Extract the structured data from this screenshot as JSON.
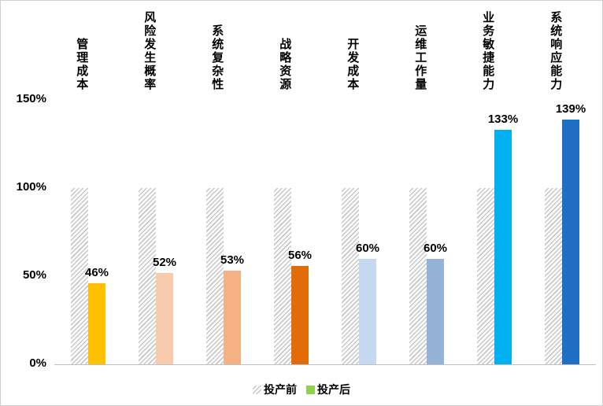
{
  "chart_data": {
    "type": "bar",
    "title": "",
    "categories": [
      "管理成本",
      "风险发生概率",
      "系统复杂性",
      "战略资源",
      "开发成本",
      "运维工作量",
      "业务敏捷能力",
      "系统响应能力"
    ],
    "series": [
      {
        "name": "投产前",
        "values": [
          100,
          100,
          100,
          100,
          100,
          100,
          100,
          100
        ],
        "style": "hatched-gray"
      },
      {
        "name": "投产后",
        "values": [
          46,
          52,
          53,
          56,
          60,
          60,
          133,
          139
        ],
        "colors": [
          "#FFC000",
          "#F8CBAD",
          "#F4B183",
          "#E36C0A",
          "#C5D9F1",
          "#95B3D7",
          "#00B0F0",
          "#1F6FC5"
        ]
      }
    ],
    "value_labels": [
      "46%",
      "52%",
      "53%",
      "56%",
      "60%",
      "60%",
      "133%",
      "139%"
    ],
    "yticks": [
      "0%",
      "50%",
      "100%",
      "150%"
    ],
    "ylim": [
      0,
      150
    ],
    "grid": false,
    "legend_position": "bottom",
    "legend": [
      {
        "label": "投产前",
        "swatch": "hatched-gray"
      },
      {
        "label": "投产后",
        "swatch_color": "#92D050"
      }
    ],
    "colors": {
      "axis_line": "#bfbfbf",
      "hatch_line": "#c6c6c6",
      "text": "#000000"
    }
  }
}
